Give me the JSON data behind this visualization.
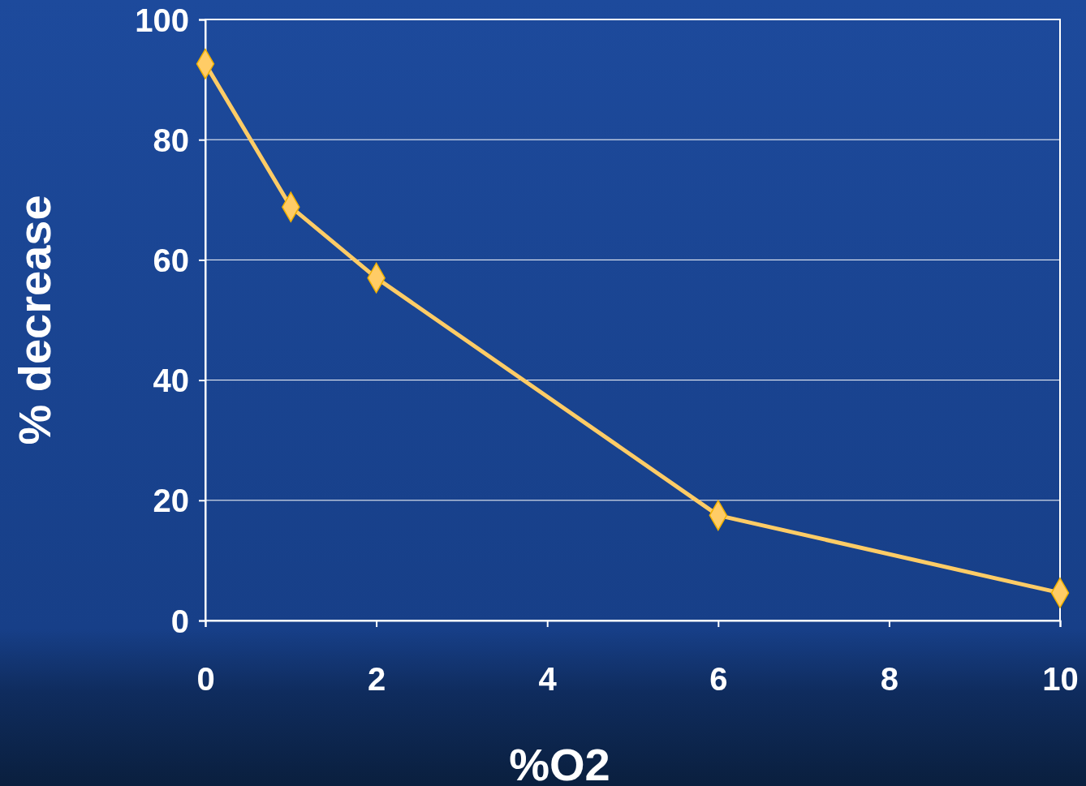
{
  "chart_data": {
    "type": "line",
    "xlabel": "%O2",
    "ylabel": "% decrease",
    "x": [
      0,
      1,
      2,
      6,
      10
    ],
    "series": [
      {
        "color": "#ffcc66",
        "values": [
          92.6,
          68.8,
          57.0,
          17.5,
          4.6
        ]
      }
    ],
    "xlim": [
      0,
      10
    ],
    "xticks": [
      0,
      2,
      4,
      6,
      8,
      10
    ],
    "ylim": [
      0,
      100
    ],
    "yticks": [
      0,
      20,
      40,
      60,
      80,
      100
    ],
    "grid": "y",
    "marker": "diamond",
    "line_style": "solid"
  }
}
